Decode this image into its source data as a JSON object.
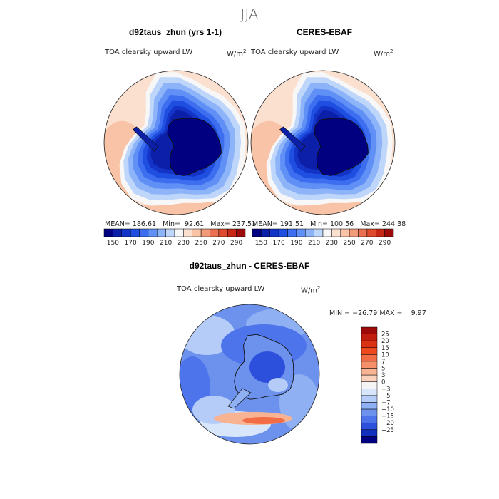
{
  "figure": {
    "suptitle": "JJA"
  },
  "chart_data": [
    {
      "type": "heatmap",
      "title": "d92taus_zhun (yrs 1-1)",
      "subtitle": "TOA clearsky upward LW",
      "units": "W/m",
      "units_exp": "2",
      "stats": {
        "mean_label": "MEAN=",
        "mean": "186.61",
        "min_label": "Min=",
        "min": "92.61",
        "max_label": "Max=",
        "max": "237.51"
      },
      "projection": "south-polar-stereographic",
      "colorbar": {
        "levels": [
          140,
          150,
          160,
          170,
          180,
          190,
          200,
          210,
          220,
          230,
          240,
          250,
          260,
          270,
          280,
          290,
          300
        ],
        "tick_labels": [
          "150",
          "170",
          "190",
          "210",
          "230",
          "250",
          "270",
          "290"
        ],
        "colors": [
          "#000080",
          "#0b1fa8",
          "#1434c8",
          "#1f4fe0",
          "#3d6ef0",
          "#6090f5",
          "#8db3f8",
          "#bfd6fb",
          "#f7f7f7",
          "#fbe0d0",
          "#f8c3a6",
          "#f29b7a",
          "#ea7051",
          "#dd4a2e",
          "#c72815",
          "#9c0a0a"
        ]
      }
    },
    {
      "type": "heatmap",
      "title": "CERES-EBAF",
      "subtitle": "TOA clearsky upward LW",
      "units": "W/m",
      "units_exp": "2",
      "stats": {
        "mean_label": "MEAN=",
        "mean": "191.51",
        "min_label": "Min=",
        "min": "100.56",
        "max_label": "Max=",
        "max": "244.38"
      },
      "projection": "south-polar-stereographic",
      "colorbar": {
        "levels": [
          140,
          150,
          160,
          170,
          180,
          190,
          200,
          210,
          220,
          230,
          240,
          250,
          260,
          270,
          280,
          290,
          300
        ],
        "tick_labels": [
          "150",
          "170",
          "190",
          "210",
          "230",
          "250",
          "270",
          "290"
        ],
        "colors": [
          "#000080",
          "#0b1fa8",
          "#1434c8",
          "#1f4fe0",
          "#3d6ef0",
          "#6090f5",
          "#8db3f8",
          "#bfd6fb",
          "#f7f7f7",
          "#fbe0d0",
          "#f8c3a6",
          "#f29b7a",
          "#ea7051",
          "#dd4a2e",
          "#c72815",
          "#9c0a0a"
        ]
      }
    },
    {
      "type": "heatmap",
      "title": "d92taus_zhun - CERES-EBAF",
      "subtitle": "TOA clearsky upward LW",
      "units": "W/m",
      "units_exp": "2",
      "stats": {
        "min_label": "MIN =",
        "min": "−26.79",
        "max_label": "MAX =",
        "max": "9.97"
      },
      "projection": "south-polar-stereographic",
      "colorbar": {
        "tick_labels": [
          "25",
          "20",
          "15",
          "10",
          "7",
          "5",
          "3",
          "0",
          "−3",
          "−5",
          "−7",
          "−10",
          "−15",
          "−20",
          "−25"
        ],
        "colors": [
          "#9c0a0a",
          "#c21e0f",
          "#dc3214",
          "#ef4a1e",
          "#f26d45",
          "#f5906b",
          "#f8b392",
          "#fad2bb",
          "#f5f5f5",
          "#d7e6fb",
          "#b4ccf7",
          "#8fb0f2",
          "#6d92ee",
          "#4d74ea",
          "#2d50dc",
          "#1230c0",
          "#000080"
        ]
      }
    }
  ]
}
